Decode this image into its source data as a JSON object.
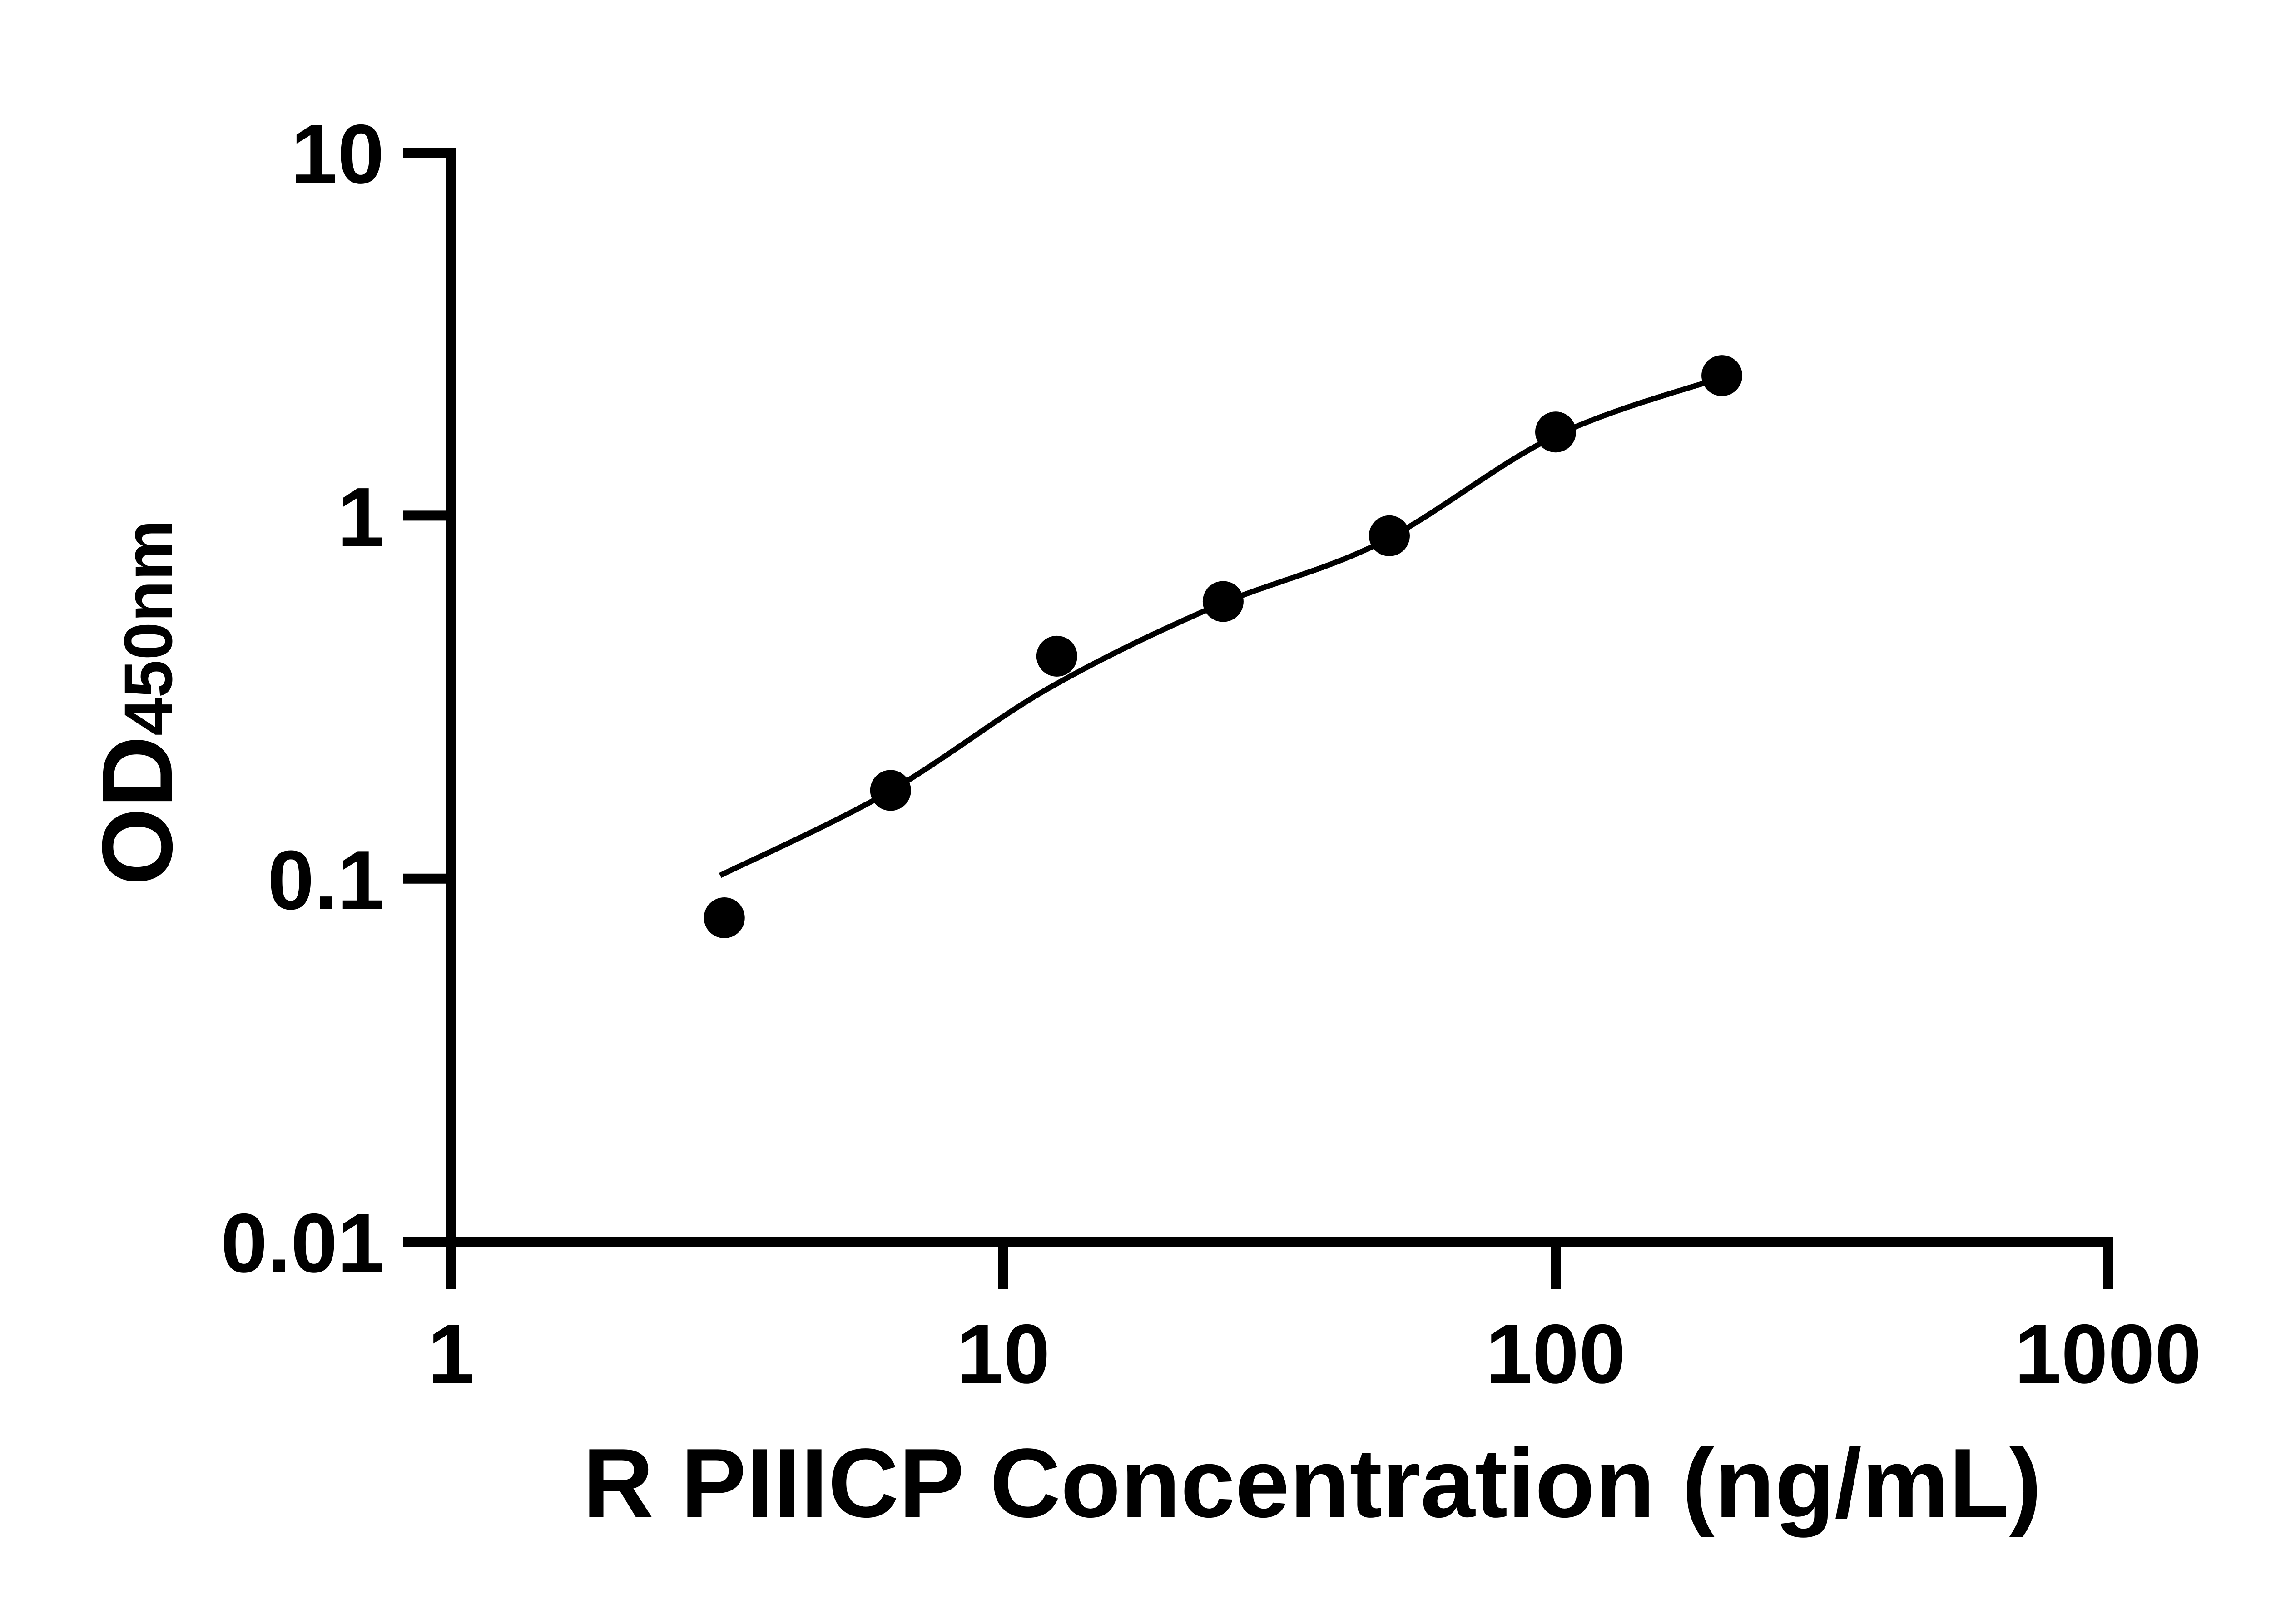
{
  "chart_data": {
    "type": "scatter",
    "title": "",
    "xlabel": "R PIIICP Concentration (ng/mL)",
    "ylabel_main": "OD",
    "ylabel_sub": "450nm",
    "x_scale": "log",
    "y_scale": "log",
    "xlim": [
      1,
      1000
    ],
    "ylim": [
      0.01,
      10
    ],
    "x_ticks": [
      {
        "value": 1,
        "label": "1"
      },
      {
        "value": 10,
        "label": "10"
      },
      {
        "value": 100,
        "label": "100"
      },
      {
        "value": 1000,
        "label": "1000"
      }
    ],
    "y_ticks": [
      {
        "value": 10,
        "label": "10"
      },
      {
        "value": 1,
        "label": "1"
      },
      {
        "value": 0.1,
        "label": "0.1"
      },
      {
        "value": 0.01,
        "label": "0.01"
      }
    ],
    "grid": false,
    "legend": false,
    "points": [
      {
        "x": 3.125,
        "y": 0.078
      },
      {
        "x": 6.25,
        "y": 0.175
      },
      {
        "x": 12.5,
        "y": 0.41
      },
      {
        "x": 25,
        "y": 0.58
      },
      {
        "x": 50,
        "y": 0.88
      },
      {
        "x": 100,
        "y": 1.7
      },
      {
        "x": 200,
        "y": 2.43
      }
    ],
    "fit_curve": [
      {
        "x": 3.07,
        "y": 0.102
      },
      {
        "x": 6.15,
        "y": 0.172
      },
      {
        "x": 12.1,
        "y": 0.335
      },
      {
        "x": 24,
        "y": 0.56
      },
      {
        "x": 48,
        "y": 0.84
      },
      {
        "x": 100,
        "y": 1.66
      },
      {
        "x": 205,
        "y": 2.43
      }
    ],
    "colors": {
      "axis": "#000000",
      "marker": "#000000",
      "curve": "#000000",
      "background": "#ffffff"
    }
  }
}
